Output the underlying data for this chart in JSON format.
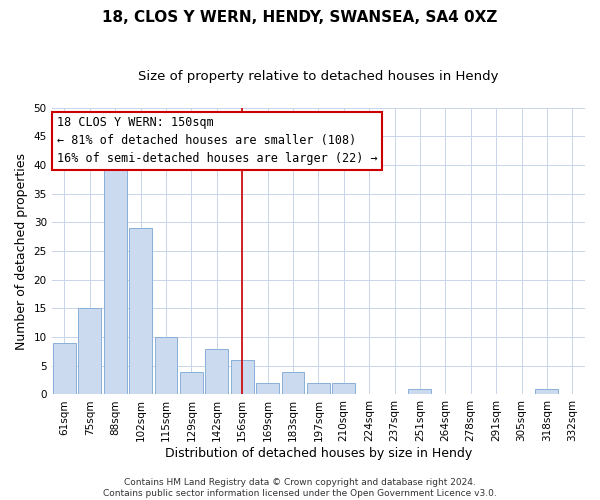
{
  "title": "18, CLOS Y WERN, HENDY, SWANSEA, SA4 0XZ",
  "subtitle": "Size of property relative to detached houses in Hendy",
  "xlabel": "Distribution of detached houses by size in Hendy",
  "ylabel": "Number of detached properties",
  "bin_labels": [
    "61sqm",
    "75sqm",
    "88sqm",
    "102sqm",
    "115sqm",
    "129sqm",
    "142sqm",
    "156sqm",
    "169sqm",
    "183sqm",
    "197sqm",
    "210sqm",
    "224sqm",
    "237sqm",
    "251sqm",
    "264sqm",
    "278sqm",
    "291sqm",
    "305sqm",
    "318sqm",
    "332sqm"
  ],
  "bar_heights": [
    9,
    15,
    40,
    29,
    10,
    4,
    8,
    6,
    2,
    4,
    2,
    2,
    0,
    0,
    1,
    0,
    0,
    0,
    0,
    1,
    0
  ],
  "bar_color": "#ccdaf0",
  "bar_edge_color": "#8ab0d8",
  "vline_x_index": 7,
  "vline_color": "#cc0000",
  "ylim": [
    0,
    50
  ],
  "yticks": [
    0,
    5,
    10,
    15,
    20,
    25,
    30,
    35,
    40,
    45,
    50
  ],
  "annotation_title": "18 CLOS Y WERN: 150sqm",
  "annotation_line1": "← 81% of detached houses are smaller (108)",
  "annotation_line2": "16% of semi-detached houses are larger (22) →",
  "annotation_box_color": "#ffffff",
  "annotation_box_edge": "#cc0000",
  "footer_line1": "Contains HM Land Registry data © Crown copyright and database right 2024.",
  "footer_line2": "Contains public sector information licensed under the Open Government Licence v3.0.",
  "background_color": "#ffffff",
  "grid_color": "#c8d4e8",
  "title_fontsize": 11,
  "subtitle_fontsize": 9.5,
  "axis_label_fontsize": 9,
  "tick_fontsize": 7.5,
  "annotation_fontsize": 8.5,
  "footer_fontsize": 6.5
}
